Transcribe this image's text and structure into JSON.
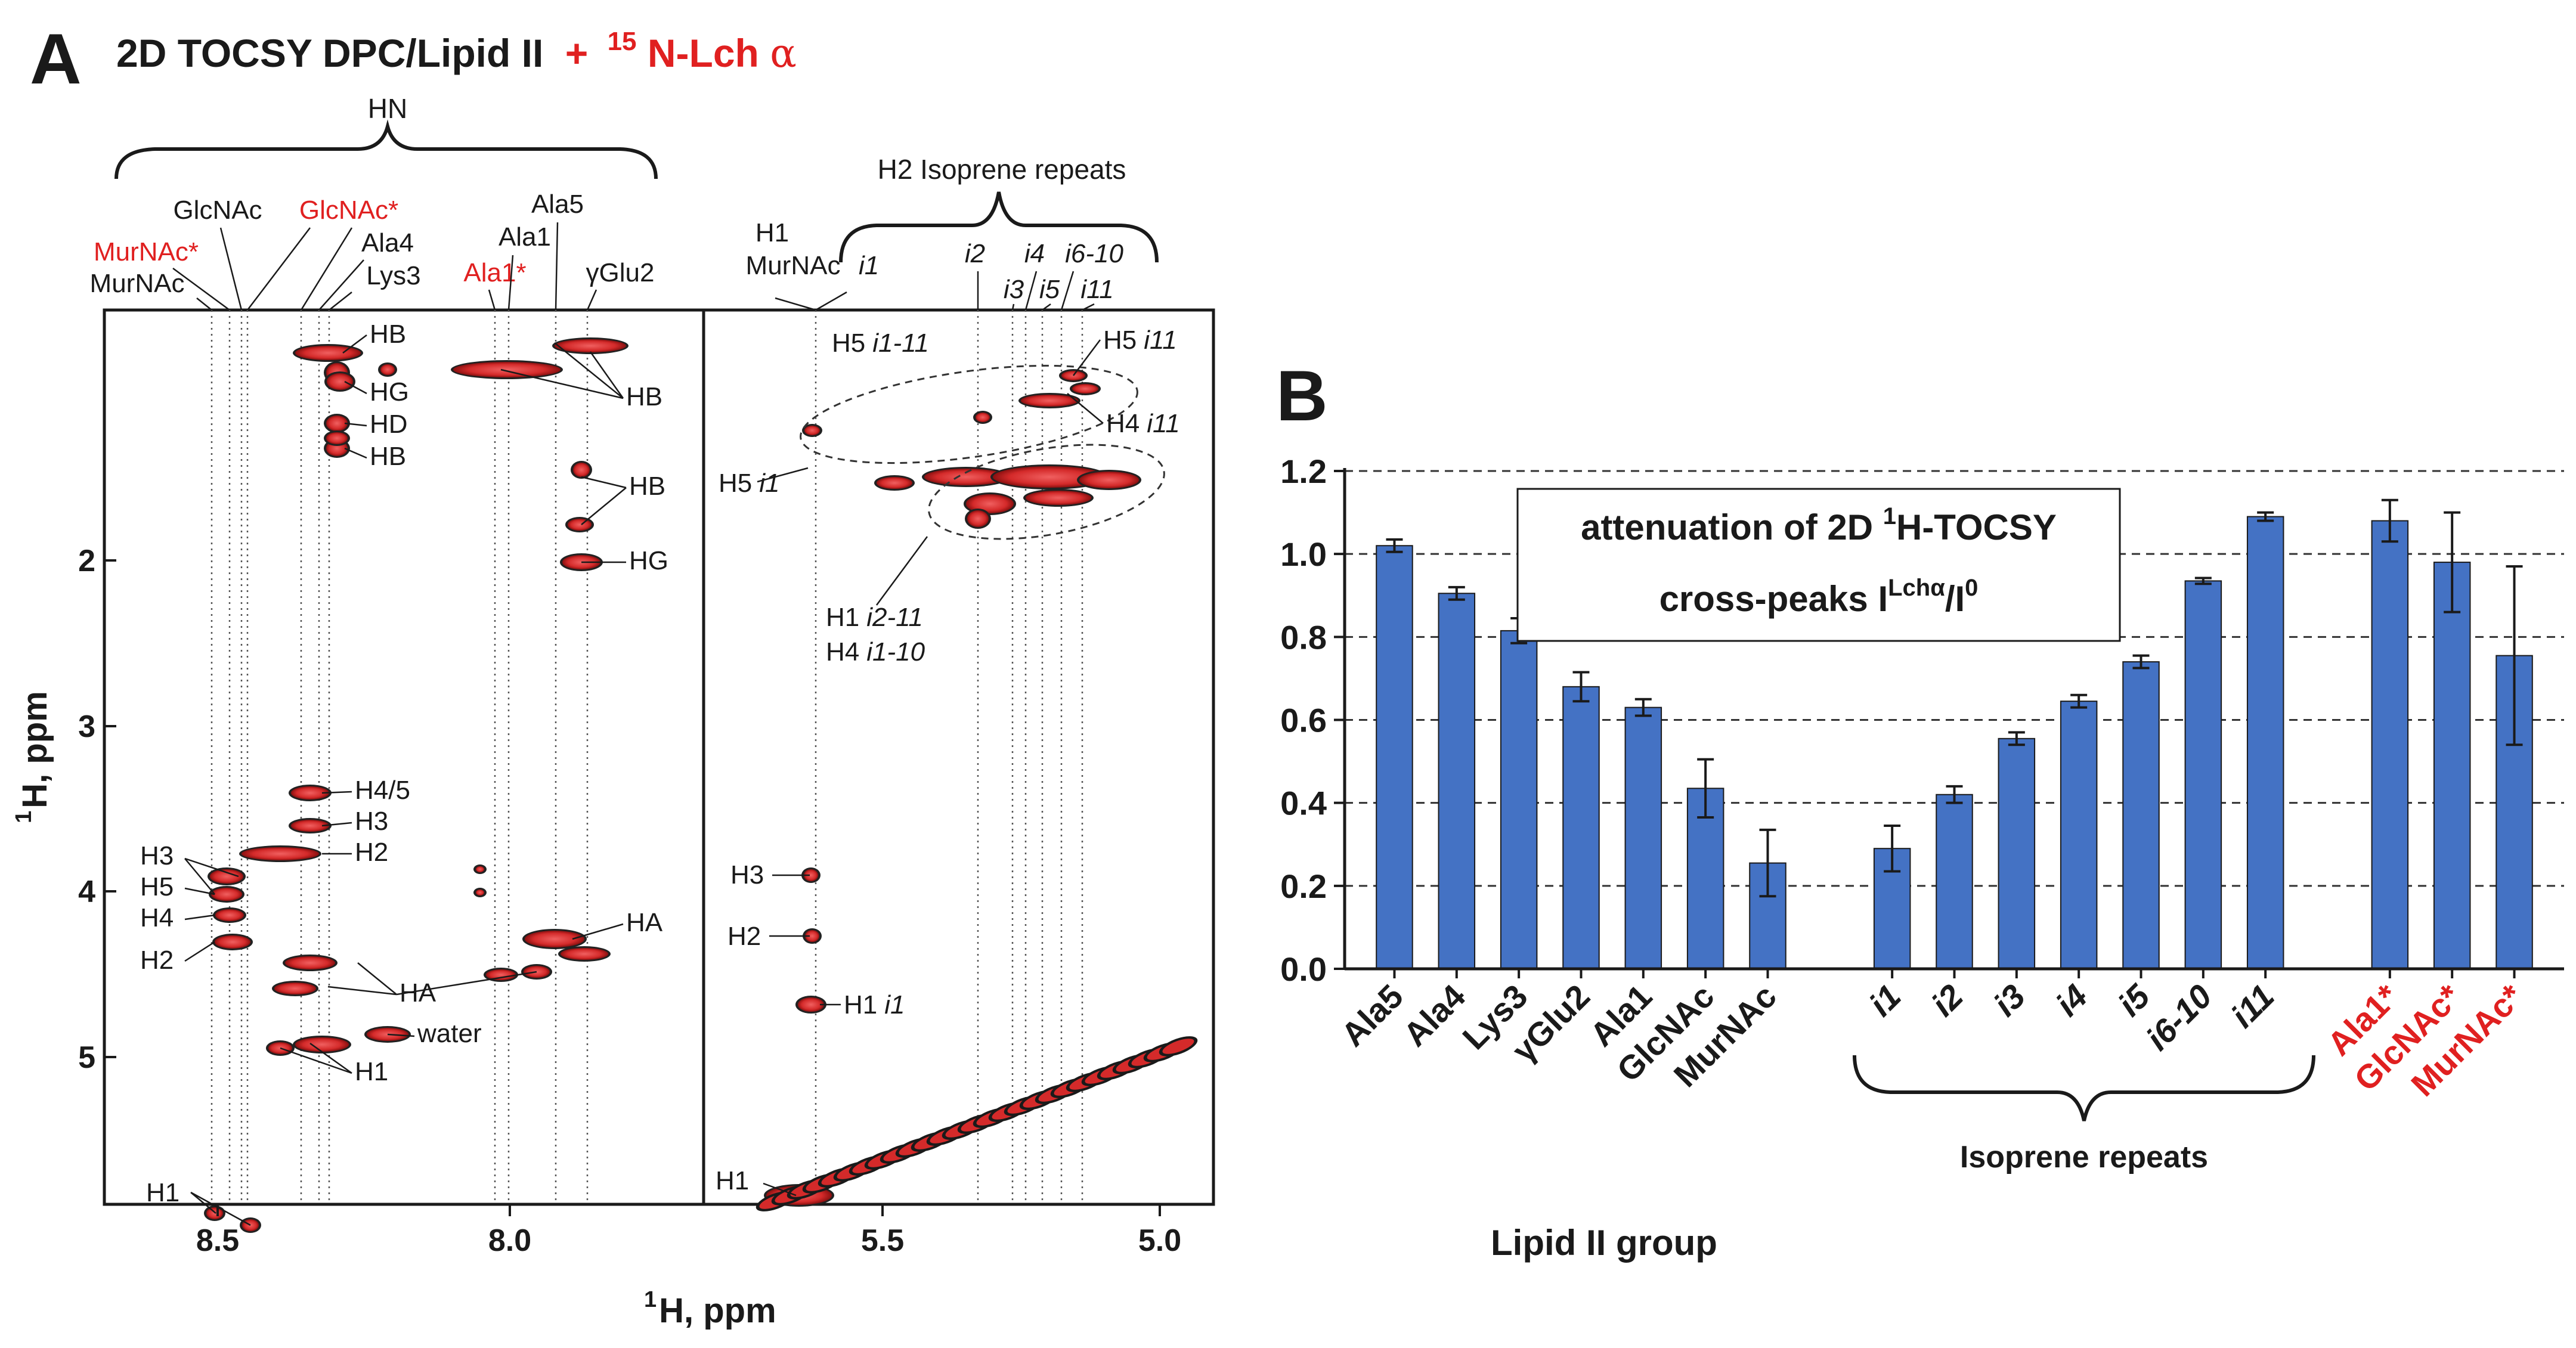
{
  "panel_a": {
    "letter": "A",
    "title_main": "2D TOCSY DPC/Lipid II",
    "title_plus": "+",
    "title_iso": "15",
    "title_rest": "N-Lch",
    "title_greek": "α",
    "hn_label": "HN",
    "h2_repeats_label": "H2 Isoprene repeats",
    "y_axis_label": "H, ppm",
    "y_axis_sup": "1",
    "x_axis_label": "H, ppm",
    "x_axis_sup": "1",
    "y_ticks": [
      "2",
      "3",
      "4",
      "5"
    ],
    "x_ticks_left": [
      "8.5",
      "8.0"
    ],
    "x_ticks_right": [
      "5.5",
      "5.0"
    ],
    "top_labels": [
      {
        "text": "MurNAc",
        "red": false
      },
      {
        "text": "MurNAc*",
        "red": true
      },
      {
        "text": "GlcNAc",
        "red": false
      },
      {
        "text": "GlcNAc*",
        "red": true
      },
      {
        "text": "Ala4",
        "red": false
      },
      {
        "text": "Lys3",
        "red": false
      },
      {
        "text": "Ala1*",
        "red": true
      },
      {
        "text": "Ala1",
        "red": false
      },
      {
        "text": "Ala5",
        "red": false
      },
      {
        "text": "γGlu2",
        "red": false
      }
    ],
    "left_peak_labels": [
      "HB",
      "HG",
      "HD",
      "HB",
      "HB",
      "HB",
      "HG",
      "H4/5",
      "H3",
      "H2",
      "H3",
      "H5",
      "H4",
      "H2",
      "HA",
      "HA",
      "water",
      "H1",
      "H1"
    ],
    "right_top_labels": [
      "H1",
      "MurNAc",
      "i1",
      "i2",
      "i3",
      "i4",
      "i5",
      "i6-10",
      "i11"
    ],
    "right_peak_labels": {
      "h5_range_a": "H5",
      "h5_range_b": "i1-11",
      "h5_i11_a": "H5",
      "h5_i11_b": "i11",
      "h4_i11_a": "H4",
      "h4_i11_b": "i11",
      "h5_i1_a": "H5",
      "h5_i1_b": "i1",
      "h1_range_a": "H1",
      "h1_range_b": "i2-11",
      "h4_range_a": "H4",
      "h4_range_b": "i1-10",
      "h3": "H3",
      "h2": "H2",
      "h1_i1_a": "H1",
      "h1_i1_b": "i1",
      "h1_bottom": "H1"
    }
  },
  "panel_b": {
    "letter": "B",
    "legend_line1": "attenuation of 2D ",
    "legend_sup": "1",
    "legend_line1_end": "H-TOCSY",
    "legend_line2": "cross-peaks I",
    "legend_line2_sup": "Lchα",
    "legend_line2_mid": "/I",
    "legend_line2_sup2": "0",
    "isoprene_label": "Isoprene repeats",
    "x_title": "Lipid II group"
  },
  "chart_data": {
    "type": "bar",
    "title": "",
    "xlabel": "Lipid II group",
    "ylabel": "",
    "ylim": [
      0,
      1.2
    ],
    "y_ticks": [
      "0.0",
      "0.2",
      "0.4",
      "0.6",
      "0.8",
      "1.0",
      "1.2"
    ],
    "grid": "dashed horizontal",
    "bar_color": "#4472c4",
    "categories": [
      {
        "label": "Ala5",
        "value": 1.02,
        "err": 0.015,
        "red": false
      },
      {
        "label": "Ala4",
        "value": 0.905,
        "err": 0.015,
        "red": false
      },
      {
        "label": "Lys3",
        "value": 0.815,
        "err": 0.03,
        "red": false
      },
      {
        "label": "γGlu2",
        "value": 0.68,
        "err": 0.035,
        "red": false
      },
      {
        "label": "Ala1",
        "value": 0.63,
        "err": 0.02,
        "red": false
      },
      {
        "label": "GlcNAc",
        "value": 0.435,
        "err": 0.07,
        "red": false
      },
      {
        "label": "MurNAc",
        "value": 0.255,
        "err": 0.08,
        "red": false
      },
      {
        "label": "i1",
        "value": 0.29,
        "err": 0.055,
        "red": false,
        "italic": true
      },
      {
        "label": "i2",
        "value": 0.42,
        "err": 0.02,
        "red": false,
        "italic": true
      },
      {
        "label": "i3",
        "value": 0.555,
        "err": 0.015,
        "red": false,
        "italic": true
      },
      {
        "label": "i4",
        "value": 0.645,
        "err": 0.015,
        "red": false,
        "italic": true
      },
      {
        "label": "i5",
        "value": 0.74,
        "err": 0.015,
        "red": false,
        "italic": true
      },
      {
        "label": "i6-10",
        "value": 0.935,
        "err": 0.007,
        "red": false,
        "italic": true
      },
      {
        "label": "i11",
        "value": 1.09,
        "err": 0.01,
        "red": false,
        "italic": true
      },
      {
        "label": "Ala1*",
        "value": 1.08,
        "err": 0.05,
        "red": true
      },
      {
        "label": "GlcNAc*",
        "value": 0.98,
        "err": 0.12,
        "red": true
      },
      {
        "label": "MurNAc*",
        "value": 0.755,
        "err": 0.215,
        "red": true
      }
    ]
  }
}
